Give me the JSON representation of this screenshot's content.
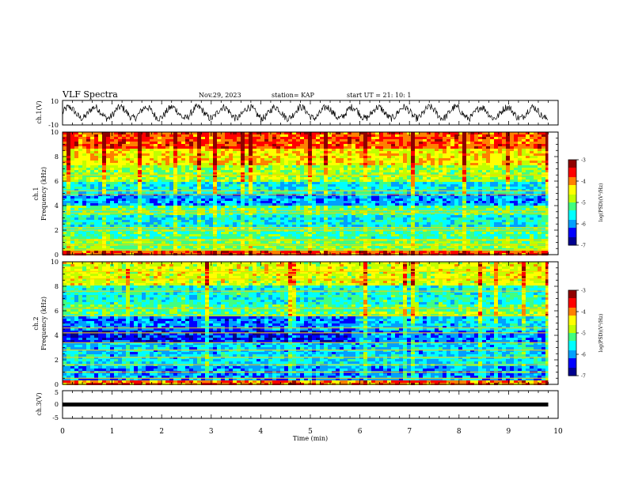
{
  "header": {
    "title": "VLF Spectra",
    "date": "Nov.29, 2023",
    "station": "station= KAP",
    "start_ut": "start  UT =   21: 10: 1"
  },
  "chart_data": [
    {
      "type": "line",
      "panel": "ch1-waveform",
      "ylabel": "ch.1(V)",
      "yticks": [
        "10",
        "-10"
      ],
      "ylim": [
        -10,
        10
      ],
      "xlim": [
        0,
        10
      ],
      "series_color": "#000000",
      "description_values": "dense oscillating voltage trace between about -7 and +7 V, period ~0.5 min",
      "data_end_min": 9.8
    },
    {
      "type": "heatmap",
      "panel": "ch1-spectrogram",
      "ylabel_line1": "ch.1",
      "ylabel_line2": "Frequency  (kHz)",
      "yticks": [
        "0",
        "2",
        "4",
        "6",
        "8",
        "10"
      ],
      "ylim": [
        0,
        10
      ],
      "xlim": [
        0,
        10
      ],
      "data_end_min": 9.8,
      "colorbar": {
        "label": "log(PSD)(V²/Hz)",
        "ticks": [
          "-3",
          "-4",
          "-5",
          "-6",
          "-7"
        ],
        "range": [
          -7,
          -3
        ],
        "colors": [
          "#000090",
          "#0000ff",
          "#00a0ff",
          "#00ffff",
          "#40ff80",
          "#c0ff00",
          "#ffff00",
          "#ff8000",
          "#ff0000",
          "#900000"
        ]
      },
      "bands_khz": [
        {
          "lo": 8.6,
          "hi": 10.0,
          "level": -3.8
        },
        {
          "lo": 7.2,
          "hi": 8.6,
          "level": -4.4
        },
        {
          "lo": 6.0,
          "hi": 7.2,
          "level": -4.9
        },
        {
          "lo": 5.0,
          "hi": 6.0,
          "level": -5.6
        },
        {
          "lo": 4.0,
          "hi": 5.0,
          "level": -6.0
        },
        {
          "lo": 3.3,
          "hi": 4.0,
          "level": -5.2
        },
        {
          "lo": 2.3,
          "hi": 3.3,
          "level": -5.6
        },
        {
          "lo": 1.3,
          "hi": 2.3,
          "level": -5.3
        },
        {
          "lo": 0.3,
          "hi": 1.3,
          "level": -5.0
        },
        {
          "lo": 0.0,
          "hi": 0.3,
          "level": -3.8
        }
      ],
      "lines_khz": [
        6.5,
        5.2,
        4.9,
        3.6,
        3.4,
        2.2,
        2.0,
        1.2,
        0.8,
        0.4
      ]
    },
    {
      "type": "heatmap",
      "panel": "ch2-spectrogram",
      "ylabel_line1": "ch.2",
      "ylabel_line2": "Frequency  (kHz)",
      "yticks": [
        "0",
        "2",
        "4",
        "6",
        "8",
        "10"
      ],
      "ylim": [
        0,
        10
      ],
      "xlim": [
        0,
        10
      ],
      "data_end_min": 9.8,
      "colorbar": {
        "label": "log(PSD)(V²/Hz)",
        "ticks": [
          "-3",
          "-4",
          "-5",
          "-6",
          "-7"
        ],
        "range": [
          -7,
          -3
        ]
      },
      "bands_khz": [
        {
          "lo": 8.0,
          "hi": 10.0,
          "level": -4.6
        },
        {
          "lo": 6.6,
          "hi": 8.0,
          "level": -5.5
        },
        {
          "lo": 5.6,
          "hi": 6.6,
          "level": -5.2
        },
        {
          "lo": 4.4,
          "hi": 5.6,
          "level": -6.1
        },
        {
          "lo": 3.4,
          "hi": 4.4,
          "level": -6.4
        },
        {
          "lo": 2.4,
          "hi": 3.4,
          "level": -5.8
        },
        {
          "lo": 1.4,
          "hi": 2.4,
          "level": -5.7
        },
        {
          "lo": 0.3,
          "hi": 1.4,
          "level": -6.0
        },
        {
          "lo": 0.0,
          "hi": 0.3,
          "level": -4.0
        }
      ],
      "lines_khz": [
        9.2,
        8.6,
        7.6,
        6.2,
        5.6,
        4.6,
        4.2,
        3.4,
        2.8,
        2.2,
        1.6,
        1.0,
        0.5
      ]
    },
    {
      "type": "line",
      "panel": "ch3-waveform",
      "ylabel": "ch.3(V)",
      "yticks": [
        "5",
        "0",
        "-5"
      ],
      "ylim": [
        -5,
        5
      ],
      "xlim": [
        0,
        10
      ],
      "constant_value": 0,
      "data_end_min": 9.8
    }
  ],
  "xaxis": {
    "label": "Time  (min)",
    "ticks": [
      "0",
      "1",
      "2",
      "3",
      "4",
      "5",
      "6",
      "7",
      "8",
      "9",
      "10"
    ]
  }
}
